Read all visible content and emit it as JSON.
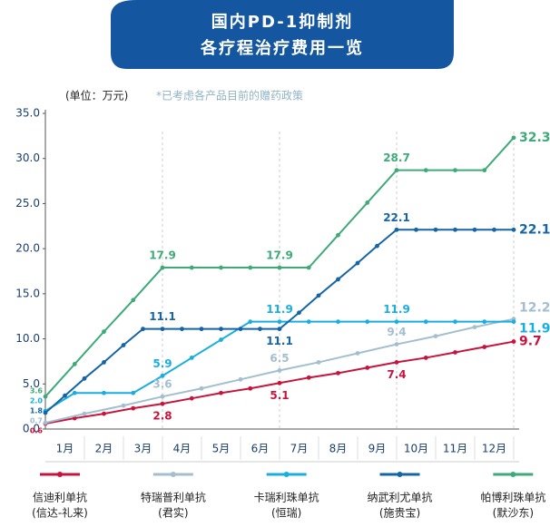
{
  "chart_data": {
    "type": "line",
    "title": [
      "国内PD-1抑制剂",
      "各疗程治疗费用一览"
    ],
    "unit_label": "(单位：万元)",
    "note": "*已考虑各产品目前的赠药政策",
    "categories": [
      "1月",
      "2月",
      "3月",
      "4月",
      "5月",
      "6月",
      "7月",
      "8月",
      "9月",
      "10月",
      "11月",
      "12月"
    ],
    "xlim": [
      0,
      12
    ],
    "vlines": [
      3,
      6,
      9,
      12
    ],
    "ylim": [
      0,
      35
    ],
    "yticks": [
      {
        "value": 0,
        "label": "0.0"
      },
      {
        "value": 5,
        "label": "5.0"
      },
      {
        "value": 10,
        "label": "10.0"
      },
      {
        "value": 15,
        "label": "15.0"
      },
      {
        "value": 20,
        "label": "20.0"
      },
      {
        "value": 25,
        "label": "25.0"
      },
      {
        "value": 30,
        "label": "30.0"
      },
      {
        "value": 35,
        "label": "35.0"
      }
    ],
    "series": [
      {
        "name": "信迪利单抗",
        "company": "(信达-礼来)",
        "color": "#c8143c",
        "x": [
          0,
          0.75,
          1.5,
          2.25,
          3,
          3.75,
          4.5,
          5.25,
          6,
          6.75,
          7.5,
          8.25,
          9,
          9.75,
          10.5,
          11.25,
          12
        ],
        "values": [
          0.6,
          1.2,
          1.7,
          2.3,
          2.8,
          3.4,
          4.0,
          4.5,
          5.1,
          5.7,
          6.2,
          6.8,
          7.4,
          7.9,
          8.5,
          9.1,
          9.7
        ]
      },
      {
        "name": "特瑞普利单抗",
        "company": "(君实)",
        "color": "#a3bfcf",
        "x": [
          0,
          1,
          2,
          3,
          4,
          5,
          6,
          7,
          8,
          9,
          10,
          11,
          12
        ],
        "values": [
          0.7,
          1.7,
          2.6,
          3.6,
          4.5,
          5.5,
          6.5,
          7.4,
          8.4,
          9.4,
          10.3,
          11.3,
          12.2
        ]
      },
      {
        "name": "卡瑞利珠单抗",
        "company": "(恒瑞)",
        "color": "#1aaee0",
        "x": [
          0,
          0.75,
          1.5,
          2.25,
          3,
          3.75,
          4.5,
          5.25,
          6,
          6.75,
          7.5,
          8.25,
          9,
          9.75,
          10.5,
          11.25,
          12
        ],
        "values": [
          2.0,
          4.0,
          4.0,
          4.0,
          5.9,
          7.9,
          9.9,
          11.9,
          11.9,
          11.9,
          11.9,
          11.9,
          11.9,
          11.9,
          11.9,
          11.9,
          11.9
        ]
      },
      {
        "name": "纳武利尤单抗",
        "company": "(施贵宝)",
        "color": "#1565a6",
        "x": [
          0,
          0.5,
          1,
          1.5,
          2,
          2.5,
          3,
          3.5,
          4,
          4.5,
          5,
          5.5,
          6,
          6.5,
          7,
          7.5,
          8,
          8.5,
          9,
          9.5,
          10,
          10.5,
          11,
          11.5,
          12
        ],
        "values": [
          1.8,
          3.7,
          5.6,
          7.4,
          9.3,
          11.1,
          11.1,
          11.1,
          11.1,
          11.1,
          11.1,
          11.1,
          11.1,
          12.9,
          14.8,
          16.6,
          18.4,
          20.3,
          22.1,
          22.1,
          22.1,
          22.1,
          22.1,
          22.1,
          22.1
        ]
      },
      {
        "name": "帕博利珠单抗",
        "company": "(默沙东)",
        "color": "#3daa78",
        "x": [
          0,
          0.75,
          1.5,
          2.25,
          3,
          3.75,
          4.5,
          5.25,
          6,
          6.75,
          7.5,
          8.25,
          9,
          9.75,
          10.5,
          11.25,
          12
        ],
        "values": [
          3.6,
          7.2,
          10.8,
          14.3,
          17.9,
          17.9,
          17.9,
          17.9,
          17.9,
          17.9,
          21.5,
          25.1,
          28.7,
          28.7,
          28.7,
          28.7,
          32.3
        ]
      }
    ],
    "annotations": [
      {
        "text": "3.6",
        "series": 4,
        "x": 0,
        "position": "left"
      },
      {
        "text": "2.0",
        "series": 2,
        "x": 0,
        "position": "left"
      },
      {
        "text": "1.8",
        "series": 3,
        "x": 0,
        "position": "left"
      },
      {
        "text": "0.7",
        "series": 1,
        "x": 0,
        "position": "left"
      },
      {
        "text": "0.6",
        "series": 0,
        "x": 0,
        "position": "left"
      },
      {
        "text": "17.9",
        "series": 4,
        "x": 3,
        "position": "above"
      },
      {
        "text": "17.9",
        "series": 4,
        "x": 6,
        "position": "above"
      },
      {
        "text": "28.7",
        "series": 4,
        "x": 9,
        "position": "above"
      },
      {
        "text": "32.3",
        "series": 4,
        "x": 12,
        "position": "right"
      },
      {
        "text": "11.1",
        "series": 3,
        "x": 3,
        "position": "above"
      },
      {
        "text": "11.1",
        "series": 3,
        "x": 6,
        "position": "below"
      },
      {
        "text": "22.1",
        "series": 3,
        "x": 9,
        "position": "above"
      },
      {
        "text": "22.1",
        "series": 3,
        "x": 12,
        "position": "right"
      },
      {
        "text": "5.9",
        "series": 2,
        "x": 3,
        "position": "above"
      },
      {
        "text": "11.9",
        "series": 2,
        "x": 6,
        "position": "above"
      },
      {
        "text": "11.9",
        "series": 2,
        "x": 9,
        "position": "above"
      },
      {
        "text": "11.9",
        "series": 2,
        "x": 12,
        "position": "right-below"
      },
      {
        "text": "3.6",
        "series": 1,
        "x": 3,
        "position": "above"
      },
      {
        "text": "6.5",
        "series": 1,
        "x": 6,
        "position": "above"
      },
      {
        "text": "9.4",
        "series": 1,
        "x": 9,
        "position": "above"
      },
      {
        "text": "12.2",
        "series": 1,
        "x": 12,
        "position": "right-above"
      },
      {
        "text": "2.8",
        "series": 0,
        "x": 3,
        "position": "below"
      },
      {
        "text": "5.1",
        "series": 0,
        "x": 6,
        "position": "below"
      },
      {
        "text": "7.4",
        "series": 0,
        "x": 9,
        "position": "below"
      },
      {
        "text": "9.7",
        "series": 0,
        "x": 12,
        "position": "right"
      }
    ]
  }
}
